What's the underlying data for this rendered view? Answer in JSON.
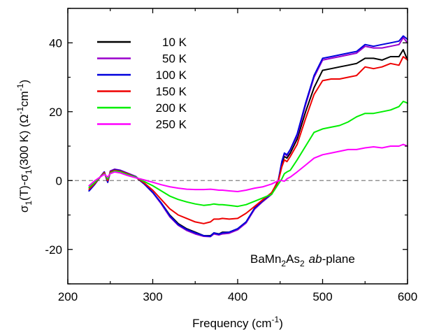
{
  "chart_data": {
    "type": "line",
    "xlabel": {
      "prefix": "Frequency (cm",
      "sup": "-1",
      "suffix": ")"
    },
    "ylabel": "σ1(T)-σ1(300 K) (Ω-1cm-1)",
    "xlim": [
      200,
      600
    ],
    "ylim": [
      -30,
      50
    ],
    "xticks": [
      200,
      300,
      400,
      500,
      600
    ],
    "yticks": [
      -20,
      0,
      20,
      40
    ],
    "zero_line": {
      "y": 0,
      "style": "dashed",
      "color": "#808080"
    },
    "legend_position": "top-left",
    "annotation": {
      "material": "BaMn2As2",
      "plane_italic": "ab",
      "plane_suffix": "-plane"
    },
    "series": [
      {
        "name": "10 K",
        "color": "#000000",
        "x": [
          225,
          232,
          238,
          243,
          247,
          250,
          255,
          262,
          270,
          280,
          290,
          300,
          310,
          320,
          330,
          340,
          350,
          360,
          368,
          372,
          378,
          382,
          390,
          400,
          410,
          420,
          430,
          440,
          448,
          452,
          455,
          458,
          462,
          470,
          480,
          490,
          500,
          510,
          520,
          530,
          540,
          550,
          560,
          570,
          580,
          590,
          595,
          600
        ],
        "y": [
          -3,
          -1,
          1,
          2.5,
          -0.5,
          2.5,
          3,
          2.8,
          2,
          1,
          -1,
          -3.5,
          -6.5,
          -10,
          -12.5,
          -14,
          -15,
          -16,
          -16,
          -15.2,
          -15.5,
          -15,
          -15,
          -14,
          -12,
          -8,
          -6,
          -4,
          0,
          5,
          7,
          6.5,
          8,
          12,
          20,
          27,
          32,
          32.5,
          33,
          33.5,
          34,
          35.5,
          35.5,
          35,
          36,
          36,
          38,
          35
        ]
      },
      {
        "name": "50 K",
        "color": "#9a00cc",
        "x": [
          225,
          232,
          238,
          243,
          247,
          250,
          255,
          262,
          270,
          280,
          290,
          300,
          310,
          320,
          330,
          340,
          350,
          360,
          368,
          372,
          378,
          382,
          390,
          400,
          410,
          420,
          430,
          440,
          448,
          452,
          455,
          458,
          462,
          470,
          480,
          490,
          500,
          510,
          520,
          530,
          540,
          550,
          560,
          570,
          580,
          590,
          595,
          600
        ],
        "y": [
          -3,
          -1,
          1,
          2.5,
          -0.5,
          2.8,
          3.3,
          3,
          2.2,
          1.2,
          -1,
          -3.5,
          -6.8,
          -10.5,
          -13,
          -14.5,
          -15.5,
          -16.2,
          -16.3,
          -15.5,
          -15.8,
          -15.5,
          -15.3,
          -14.3,
          -12.3,
          -8.3,
          -6,
          -4,
          0,
          5.5,
          7.8,
          7.2,
          9,
          13,
          22,
          30,
          35,
          35.5,
          36,
          36.5,
          37,
          39,
          38.5,
          38.5,
          39,
          39.5,
          41.5,
          40
        ]
      },
      {
        "name": "100 K",
        "color": "#0000dd",
        "x": [
          225,
          232,
          238,
          243,
          247,
          250,
          255,
          262,
          270,
          280,
          290,
          300,
          310,
          320,
          330,
          340,
          350,
          360,
          368,
          372,
          378,
          382,
          390,
          400,
          410,
          420,
          430,
          440,
          448,
          452,
          455,
          458,
          462,
          470,
          480,
          490,
          500,
          510,
          520,
          530,
          540,
          550,
          560,
          570,
          580,
          590,
          595,
          600
        ],
        "y": [
          -3,
          -1,
          1,
          2.5,
          -0.5,
          2.6,
          3.2,
          2.9,
          2.1,
          1.1,
          -1,
          -3.4,
          -6.5,
          -10.2,
          -12.8,
          -14.2,
          -15.2,
          -16,
          -16.2,
          -15.2,
          -15.6,
          -15.2,
          -15,
          -14,
          -12,
          -8,
          -5.8,
          -3.8,
          0.3,
          5.5,
          8,
          7.5,
          9,
          13.5,
          22.5,
          30.5,
          35.5,
          36,
          36.5,
          37,
          37.5,
          39.5,
          39,
          39.5,
          40,
          40.5,
          42,
          41
        ]
      },
      {
        "name": "150 K",
        "color": "#ee0000",
        "x": [
          225,
          232,
          238,
          243,
          247,
          250,
          255,
          262,
          270,
          280,
          290,
          300,
          310,
          320,
          330,
          340,
          350,
          360,
          368,
          372,
          378,
          382,
          390,
          400,
          410,
          420,
          430,
          440,
          448,
          452,
          455,
          458,
          462,
          470,
          480,
          490,
          500,
          510,
          520,
          530,
          540,
          550,
          560,
          570,
          580,
          590,
          595,
          600
        ],
        "y": [
          -2.5,
          -0.8,
          1,
          2.3,
          0,
          2.5,
          3,
          2.7,
          2,
          1,
          -0.7,
          -2.8,
          -5.5,
          -8.2,
          -10,
          -11,
          -12,
          -12.5,
          -12,
          -11.2,
          -11.2,
          -11,
          -11.2,
          -11,
          -9.5,
          -7.5,
          -5.5,
          -3.5,
          0,
          4,
          6,
          5.5,
          7,
          10.5,
          18,
          25,
          29,
          29.5,
          29.5,
          30,
          30.5,
          33,
          32.5,
          33,
          34,
          33.5,
          36,
          35
        ]
      },
      {
        "name": "200 K",
        "color": "#00ee00",
        "x": [
          225,
          232,
          238,
          243,
          247,
          250,
          255,
          262,
          270,
          280,
          290,
          300,
          310,
          320,
          330,
          340,
          350,
          360,
          368,
          372,
          378,
          382,
          390,
          400,
          410,
          420,
          430,
          440,
          448,
          452,
          455,
          458,
          462,
          470,
          480,
          490,
          500,
          510,
          520,
          530,
          540,
          550,
          560,
          570,
          580,
          590,
          595,
          600
        ],
        "y": [
          -2,
          -0.5,
          1,
          2,
          0.5,
          2.2,
          2.8,
          2.5,
          1.8,
          1,
          -0.3,
          -1.5,
          -3,
          -4.5,
          -5.5,
          -6.2,
          -6.8,
          -7.2,
          -7,
          -6.8,
          -7,
          -7,
          -7.2,
          -7.5,
          -7,
          -6,
          -5,
          -4,
          -1,
          0.5,
          2,
          2.5,
          3,
          6,
          10,
          14,
          15,
          15.5,
          16,
          17,
          18.5,
          19.5,
          19.5,
          20,
          20.5,
          21.5,
          23,
          22.5
        ]
      },
      {
        "name": "250 K",
        "color": "#ff00ff",
        "x": [
          225,
          232,
          238,
          243,
          247,
          250,
          255,
          262,
          270,
          280,
          290,
          300,
          310,
          320,
          330,
          340,
          350,
          360,
          368,
          372,
          378,
          382,
          390,
          400,
          410,
          420,
          430,
          440,
          448,
          452,
          455,
          458,
          462,
          470,
          480,
          490,
          500,
          510,
          520,
          530,
          540,
          550,
          560,
          570,
          580,
          590,
          595,
          600
        ],
        "y": [
          -1.5,
          0,
          1,
          1.8,
          1,
          2,
          2.5,
          2.2,
          1.5,
          0.8,
          0.2,
          -0.5,
          -1.2,
          -1.8,
          -2.2,
          -2.5,
          -2.6,
          -2.6,
          -2.5,
          -2.6,
          -2.8,
          -2.8,
          -3,
          -3.2,
          -2.8,
          -2.2,
          -1.8,
          -1,
          0,
          0,
          -0.2,
          0.5,
          1,
          2.5,
          4.5,
          6.5,
          7.5,
          8,
          8.5,
          9,
          9,
          9.5,
          9.8,
          9.5,
          10,
          10,
          10.5,
          10
        ]
      }
    ]
  }
}
